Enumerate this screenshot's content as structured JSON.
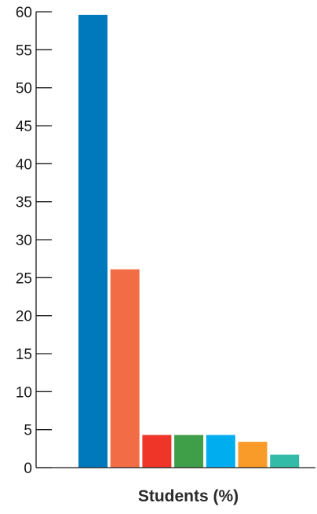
{
  "chart_data": {
    "type": "bar",
    "title": "",
    "xlabel": "Students (%)",
    "ylabel": "",
    "ylim": [
      0,
      60
    ],
    "yticks": [
      "0",
      "5",
      "10",
      "15",
      "20",
      "25",
      "30",
      "35",
      "40",
      "45",
      "50",
      "55",
      "60"
    ],
    "grid": false,
    "legend": "none",
    "categories": [
      "",
      "",
      "",
      "",
      "",
      "",
      ""
    ],
    "values": [
      59.6,
      26.1,
      4.3,
      4.3,
      4.3,
      3.4,
      1.7
    ],
    "colors": [
      "#0079BC",
      "#F26D45",
      "#EE3527",
      "#3F9F48",
      "#00AEEF",
      "#F89B28",
      "#34BBA8"
    ]
  }
}
